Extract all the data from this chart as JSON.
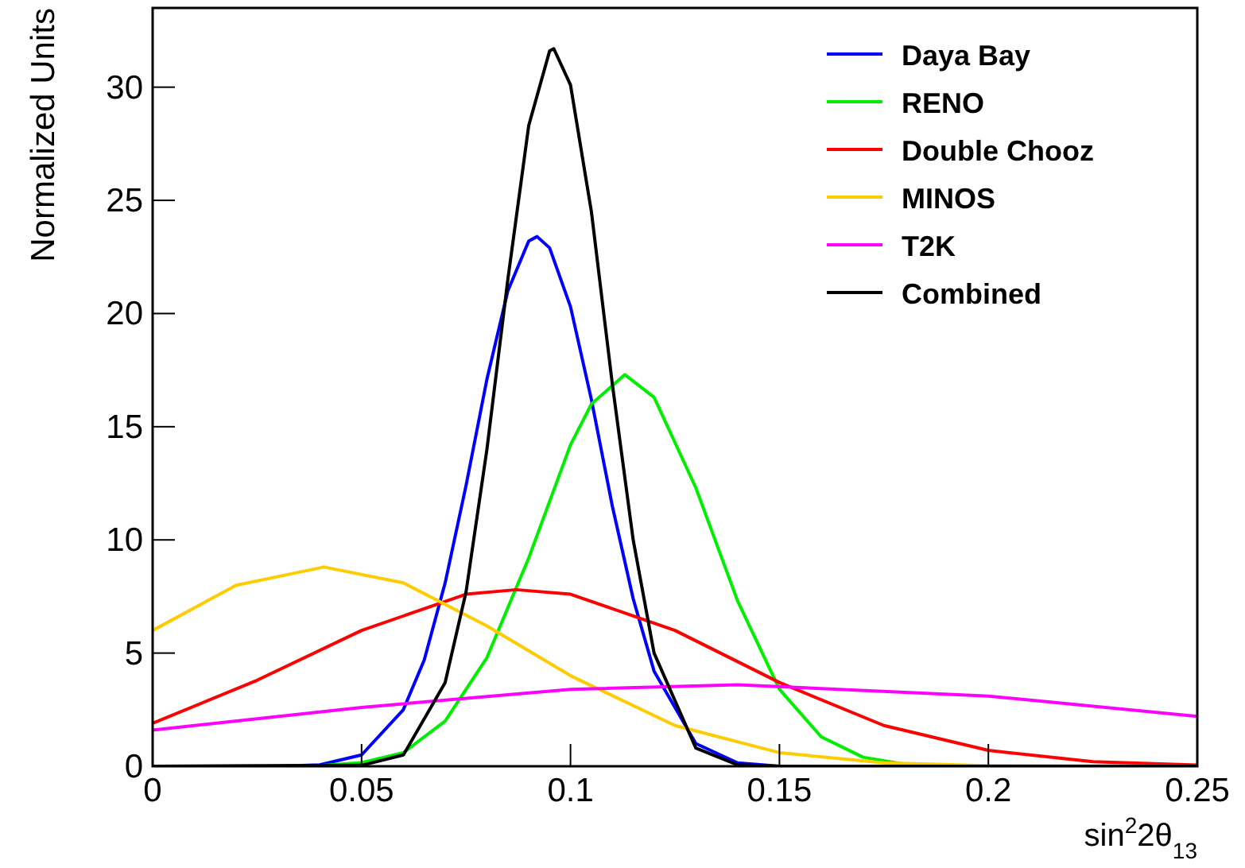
{
  "chart_data": {
    "type": "line",
    "xlabel": "sin$^{2}$2θ$_{13}$",
    "ylabel": "Normalized Units",
    "xlim": [
      0,
      0.25
    ],
    "ylim": [
      0,
      33.5
    ],
    "xticks": [
      0,
      0.05,
      0.1,
      0.15,
      0.2,
      0.25
    ],
    "yticks": [
      0,
      5,
      10,
      15,
      20,
      25,
      30
    ],
    "grid": false,
    "legend": "top right",
    "marker": "none",
    "line_style": "solid",
    "series": [
      {
        "name": "Daya Bay",
        "color": "#0000ff",
        "x": [
          0,
          0.03,
          0.04,
          0.05,
          0.06,
          0.065,
          0.07,
          0.075,
          0.08,
          0.085,
          0.09,
          0.092,
          0.095,
          0.1,
          0.105,
          0.11,
          0.115,
          0.12,
          0.13,
          0.14,
          0.15,
          0.25
        ],
        "values": [
          0,
          0,
          0.06,
          0.5,
          2.5,
          4.7,
          8.1,
          12.4,
          17.1,
          21,
          23.2,
          23.4,
          22.9,
          20.3,
          16.2,
          11.5,
          7.4,
          4.2,
          1,
          0.15,
          0,
          0
        ]
      },
      {
        "name": "RENO",
        "color": "#00ee00",
        "x": [
          0,
          0.04,
          0.05,
          0.06,
          0.07,
          0.08,
          0.09,
          0.1,
          0.105,
          0.113,
          0.12,
          0.13,
          0.14,
          0.15,
          0.16,
          0.17,
          0.18,
          0.2,
          0.25
        ],
        "values": [
          0,
          0.03,
          0.16,
          0.6,
          2,
          4.8,
          9.2,
          14.2,
          16,
          17.3,
          16.3,
          12.3,
          7.3,
          3.4,
          1.3,
          0.4,
          0.09,
          0,
          0
        ]
      },
      {
        "name": "Double Chooz",
        "color": "#ff0000",
        "x": [
          0,
          0.025,
          0.05,
          0.075,
          0.087,
          0.1,
          0.125,
          0.15,
          0.175,
          0.2,
          0.225,
          0.25
        ],
        "values": [
          1.9,
          3.8,
          6,
          7.6,
          7.8,
          7.6,
          6,
          3.7,
          1.8,
          0.7,
          0.2,
          0.05
        ]
      },
      {
        "name": "MINOS",
        "color": "#ffcc00",
        "x": [
          0,
          0.02,
          0.041,
          0.06,
          0.08,
          0.1,
          0.125,
          0.15,
          0.175,
          0.2,
          0.25
        ],
        "values": [
          6,
          8,
          8.8,
          8.1,
          6.2,
          4,
          1.8,
          0.6,
          0.15,
          0.03,
          0
        ]
      },
      {
        "name": "T2K",
        "color": "#ff00ff",
        "x": [
          0,
          0.05,
          0.1,
          0.14,
          0.2,
          0.25
        ],
        "values": [
          1.6,
          2.6,
          3.4,
          3.6,
          3.1,
          2.2
        ]
      },
      {
        "name": "Combined",
        "color": "#000000",
        "x": [
          0,
          0.05,
          0.06,
          0.07,
          0.075,
          0.08,
          0.085,
          0.09,
          0.095,
          0.096,
          0.1,
          0.105,
          0.11,
          0.115,
          0.12,
          0.13,
          0.14,
          0.15,
          0.25
        ],
        "values": [
          0,
          0.04,
          0.5,
          3.7,
          7.7,
          14,
          21.5,
          28.3,
          31.6,
          31.7,
          30.1,
          24.5,
          16.9,
          10,
          5,
          0.8,
          0.06,
          0,
          0
        ]
      }
    ]
  }
}
